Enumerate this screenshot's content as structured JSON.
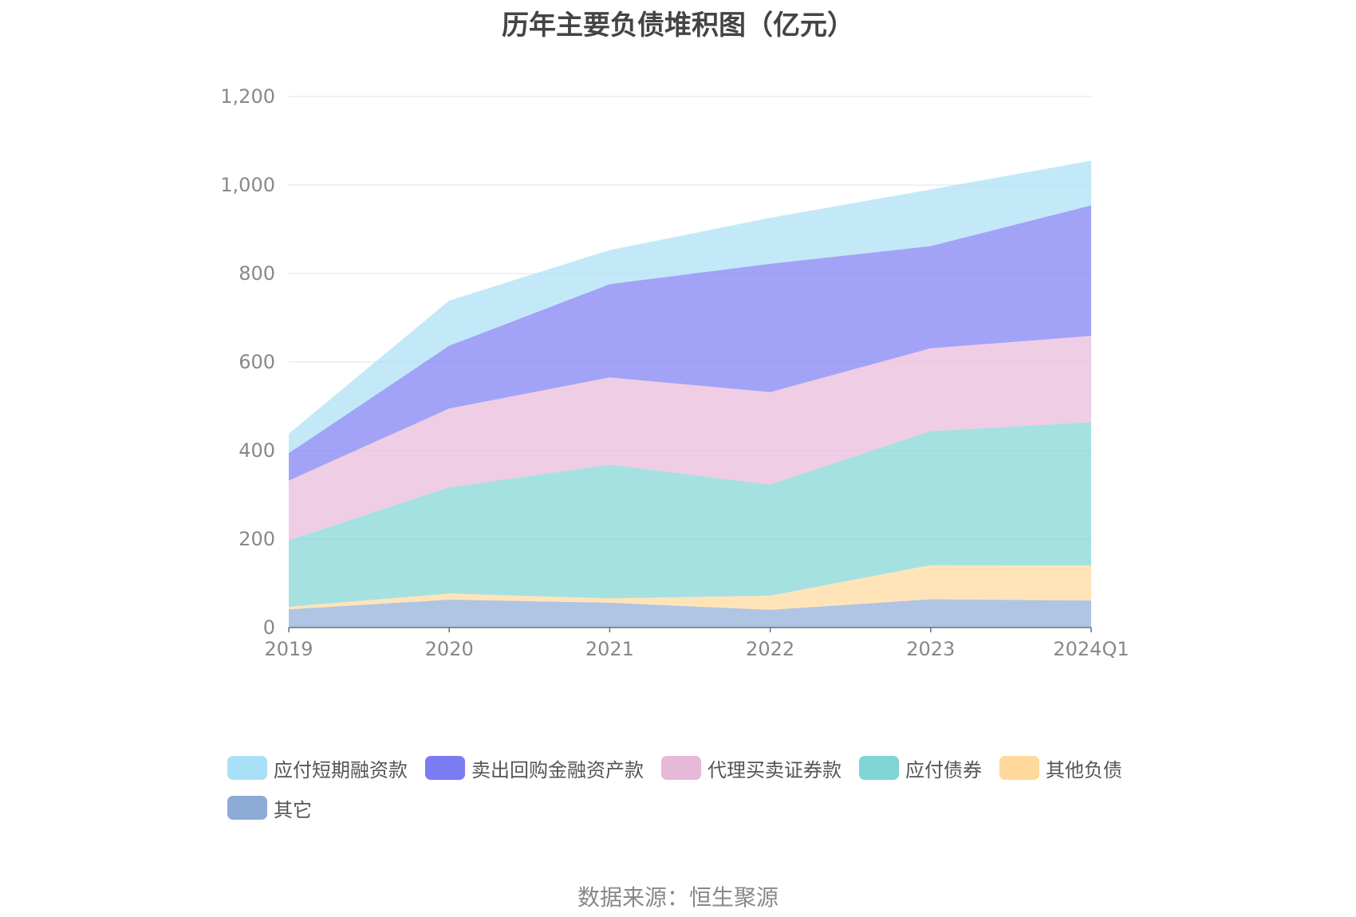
{
  "title": "历年主要负债堆积图（亿元）",
  "source": "数据来源：恒生聚源",
  "chart_data": {
    "type": "area",
    "stacked": true,
    "categories": [
      "2019",
      "2020",
      "2021",
      "2022",
      "2023",
      "2024Q1"
    ],
    "ylim": [
      0,
      1200
    ],
    "yticks": [
      0,
      200,
      400,
      600,
      800,
      1000,
      1200
    ],
    "ytick_labels": [
      "0",
      "200",
      "400",
      "600",
      "800",
      "1,000",
      "1,200"
    ],
    "grid": true,
    "legend_position": "bottom",
    "series": [
      {
        "name": "其它",
        "color": "#8eabd8",
        "values": [
          41,
          63,
          56,
          40,
          64,
          61
        ]
      },
      {
        "name": "其他负债",
        "color": "#ffd99b",
        "values": [
          6,
          14,
          10,
          32,
          77,
          79
        ]
      },
      {
        "name": "应付债券",
        "color": "#7fd4d4",
        "values": [
          150,
          240,
          302,
          251,
          303,
          324
        ]
      },
      {
        "name": "代理买卖证券款",
        "color": "#e8b8d8",
        "values": [
          135,
          178,
          197,
          209,
          187,
          195
        ]
      },
      {
        "name": "卖出回购金融资产款",
        "color": "#7b7cf2",
        "values": [
          62,
          142,
          211,
          290,
          231,
          295
        ]
      },
      {
        "name": "应付短期融资款",
        "color": "#a9e0f7",
        "values": [
          44,
          102,
          77,
          104,
          128,
          101
        ]
      }
    ]
  }
}
